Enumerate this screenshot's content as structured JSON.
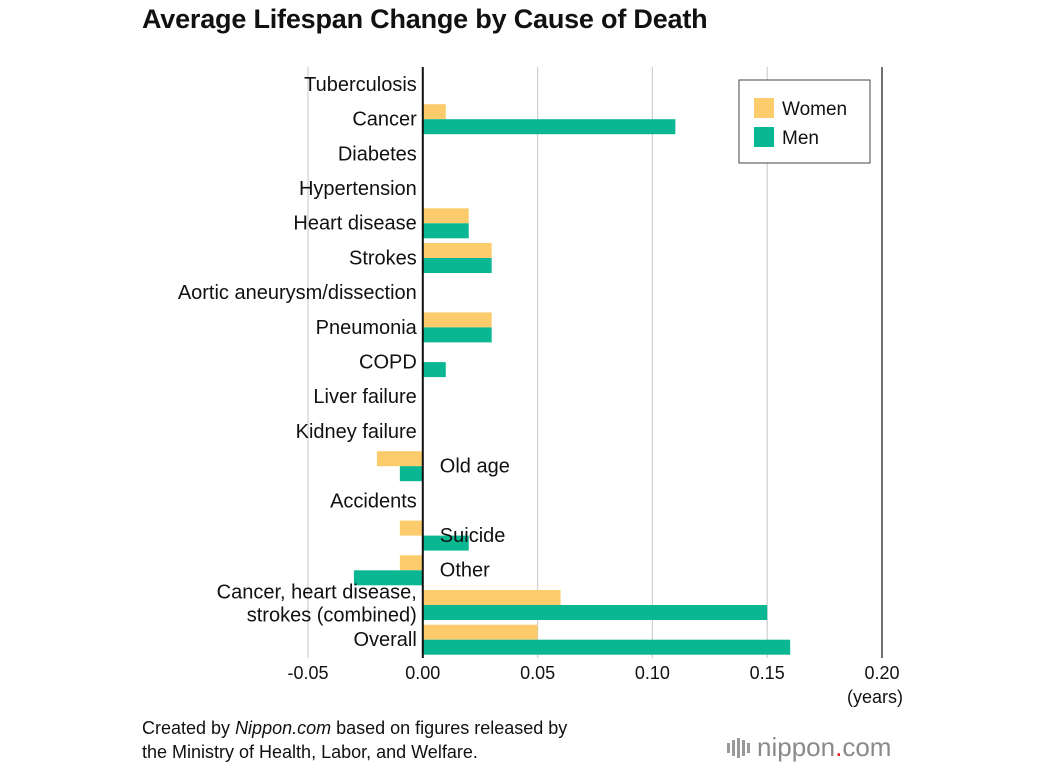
{
  "title": "Average Lifespan Change by Cause of Death",
  "source": {
    "prefix": "Created by ",
    "site": "Nippon.com",
    "line1_suffix": " based on figures released by",
    "line2": "the Ministry of Health, Labor, and Welfare."
  },
  "logo": {
    "brand": "nippon",
    "dot": ".",
    "tld": "com"
  },
  "colors": {
    "women": "#fccc6c",
    "men": "#0ab793",
    "grid": "#cfcfcf",
    "axis": "#111111"
  },
  "chart_data": {
    "type": "bar",
    "orientation": "horizontal",
    "title": "Average Lifespan Change by Cause of Death",
    "unit_label": "(years)",
    "xlim": [
      -0.05,
      0.2
    ],
    "xticks": [
      -0.05,
      0.0,
      0.05,
      0.1,
      0.15,
      0.2
    ],
    "xtick_labels": [
      "-0.05",
      "0.00",
      "0.05",
      "0.10",
      "0.15",
      "0.20"
    ],
    "grid": "vertical",
    "legend_position": "top-right",
    "categories": [
      "Tuberculosis",
      "Cancer",
      "Diabetes",
      "Hypertension",
      "Heart disease",
      "Strokes",
      "Aortic aneurysm/dissection",
      "Pneumonia",
      "COPD",
      "Liver failure",
      "Kidney failure",
      "Old age",
      "Accidents",
      "Suicide",
      "Other",
      "Cancer, heart disease,\nstrokes (combined)",
      "Overall"
    ],
    "series": [
      {
        "name": "Women",
        "values": [
          0,
          0.01,
          0,
          0,
          0.02,
          0.03,
          0,
          0.03,
          0,
          0,
          0,
          -0.02,
          0,
          -0.01,
          -0.01,
          0.06,
          0.05
        ]
      },
      {
        "name": "Men",
        "values": [
          0,
          0.11,
          0,
          0,
          0.02,
          0.03,
          0,
          0.03,
          0.01,
          0,
          0,
          -0.01,
          0,
          0.02,
          -0.03,
          0.15,
          0.16
        ]
      }
    ]
  }
}
